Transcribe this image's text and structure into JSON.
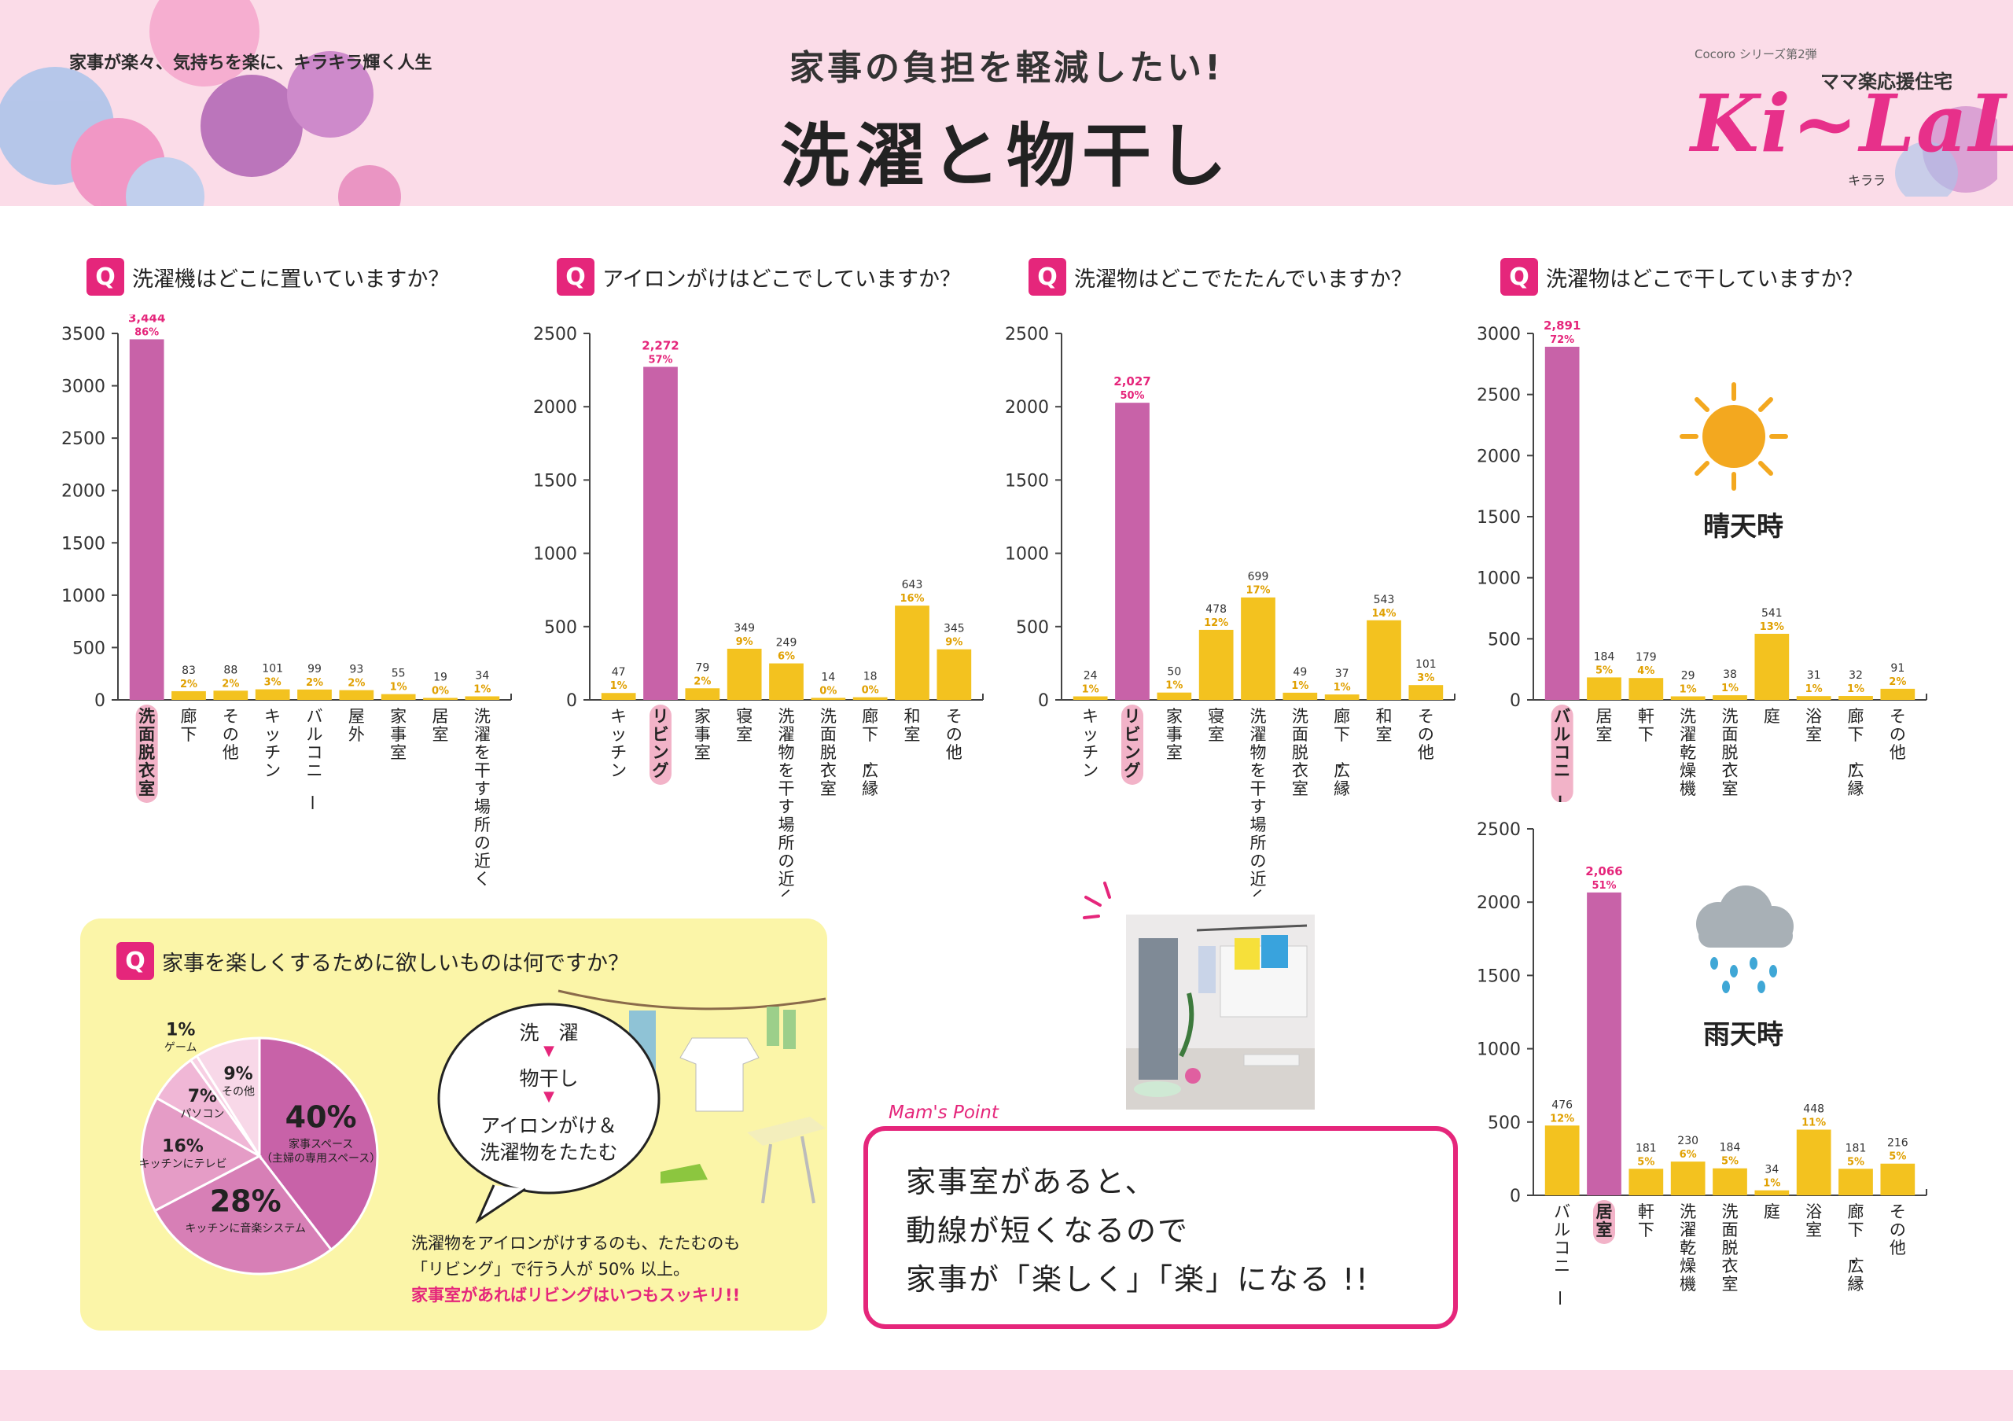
{
  "header": {
    "tagline": "家事が楽々、気持ちを楽に、キラキラ輝く人生",
    "subtitle": "家事の負担を軽減したい!",
    "title": "洗濯と物干し",
    "logo": {
      "series": "Cocoro シリーズ第2弾",
      "subtitle": "ママ楽応援住宅",
      "main": "Ki~LaLa",
      "kana": "キララ"
    }
  },
  "colors": {
    "pink": "#c862a8",
    "yellow": "#f3c21f",
    "accent": "#e5267b",
    "label_pink": "#f2b3c8"
  },
  "chart_data": [
    {
      "type": "bar",
      "question": "洗濯機はどこに置いていますか？",
      "categories": [
        "洗面脱衣室",
        "廊下",
        "その他",
        "キッチン",
        "バルコニー",
        "屋外",
        "家事室",
        "居室",
        "洗濯を干す場所の近く"
      ],
      "values": [
        3444,
        83,
        88,
        101,
        99,
        93,
        55,
        19,
        34
      ],
      "value_labels": [
        "3,444",
        "83",
        "88",
        "101",
        "99",
        "93",
        "55",
        "19",
        "34"
      ],
      "percents": [
        "86",
        "2",
        "2",
        "3",
        "2",
        "2",
        "1",
        "0",
        "1"
      ],
      "highlight": 0,
      "ylim": [
        0,
        3500
      ],
      "yticks": [
        0,
        500,
        1000,
        1500,
        2000,
        2500,
        3000,
        3500
      ]
    },
    {
      "type": "bar",
      "question": "アイロンがけはどこでしていますか？",
      "categories": [
        "キッチン",
        "リビング",
        "家事室",
        "寝室",
        "洗濯物を干す場所の近く",
        "洗面脱衣室",
        "廊下・広縁",
        "和室",
        "その他"
      ],
      "values": [
        47,
        2272,
        79,
        349,
        249,
        14,
        18,
        643,
        345
      ],
      "value_labels": [
        "47",
        "2,272",
        "79",
        "349",
        "249",
        "14",
        "18",
        "643",
        "345"
      ],
      "percents": [
        "1",
        "57",
        "2",
        "9",
        "6",
        "0",
        "0",
        "16",
        "9"
      ],
      "highlight": 1,
      "ylim": [
        0,
        2500
      ],
      "yticks": [
        0,
        500,
        1000,
        1500,
        2000,
        2500
      ]
    },
    {
      "type": "bar",
      "question": "洗濯物はどこでたたんでいますか？",
      "categories": [
        "キッチン",
        "リビング",
        "家事室",
        "寝室",
        "洗濯物を干す場所の近く",
        "洗面脱衣室",
        "廊下・広縁",
        "和室",
        "その他"
      ],
      "values": [
        24,
        2027,
        50,
        478,
        699,
        49,
        37,
        543,
        101
      ],
      "value_labels": [
        "24",
        "2,027",
        "50",
        "478",
        "699",
        "49",
        "37",
        "543",
        "101"
      ],
      "percents": [
        "1",
        "50",
        "1",
        "12",
        "17",
        "1",
        "1",
        "14",
        "3"
      ],
      "highlight": 1,
      "ylim": [
        0,
        2500
      ],
      "yticks": [
        0,
        500,
        1000,
        1500,
        2000,
        2500
      ]
    },
    {
      "type": "bar",
      "question": "洗濯物はどこで干していますか？",
      "condition": "晴天時",
      "categories": [
        "バルコニー",
        "居室",
        "軒下",
        "洗濯乾燥機",
        "洗面脱衣室",
        "庭",
        "浴室",
        "廊下・広縁",
        "その他"
      ],
      "values": [
        2891,
        184,
        179,
        29,
        38,
        541,
        31,
        32,
        91
      ],
      "value_labels": [
        "2,891",
        "184",
        "179",
        "29",
        "38",
        "541",
        "31",
        "32",
        "91"
      ],
      "percents": [
        "72",
        "5",
        "4",
        "1",
        "1",
        "13",
        "1",
        "1",
        "2"
      ],
      "highlight": 0,
      "ylim": [
        0,
        3000
      ],
      "yticks": [
        0,
        500,
        1000,
        1500,
        2000,
        2500,
        3000
      ]
    },
    {
      "type": "bar",
      "condition": "雨天時",
      "categories": [
        "バルコニー",
        "居室",
        "軒下",
        "洗濯乾燥機",
        "洗面脱衣室",
        "庭",
        "浴室",
        "廊下・広縁",
        "その他"
      ],
      "values": [
        476,
        2066,
        181,
        230,
        184,
        34,
        448,
        181,
        216
      ],
      "value_labels": [
        "476",
        "2,066",
        "181",
        "230",
        "184",
        "34",
        "448",
        "181",
        "216"
      ],
      "percents": [
        "12",
        "51",
        "5",
        "6",
        "5",
        "1",
        "11",
        "5",
        "5"
      ],
      "highlight": 1,
      "ylim": [
        0,
        2500
      ],
      "yticks": [
        0,
        500,
        1000,
        1500,
        2000,
        2500
      ]
    },
    {
      "type": "pie",
      "question": "家事を楽しくするために欲しいものは何ですか？",
      "slices": [
        {
          "label": "家事スペース",
          "sublabel": "（主婦の専用スペース）",
          "value": 40
        },
        {
          "label": "キッチンに音楽システム",
          "value": 28
        },
        {
          "label": "キッチンにテレビ",
          "value": 16
        },
        {
          "label": "パソコン",
          "value": 7
        },
        {
          "label": "ゲーム",
          "value": 1
        },
        {
          "label": "その他",
          "value": 9
        }
      ],
      "percent_unit": "%"
    }
  ],
  "flow": {
    "step1": "洗　濯",
    "step2": "物干し",
    "step3a": "アイロンがけ＆",
    "step3b": "洗濯物をたたむ"
  },
  "note": {
    "line1": "洗濯物をアイロンがけするのも、たたむのも",
    "line2": "「リビング」で行う人が 50% 以上。",
    "line3": "家事室があればリビングはいつもスッキリ!!"
  },
  "mams_point": {
    "label": "Mam's Point",
    "line1": "家事室があると、",
    "line2": "動線が短くなるので",
    "line3": "家事が「楽しく」「楽」になる !!"
  }
}
